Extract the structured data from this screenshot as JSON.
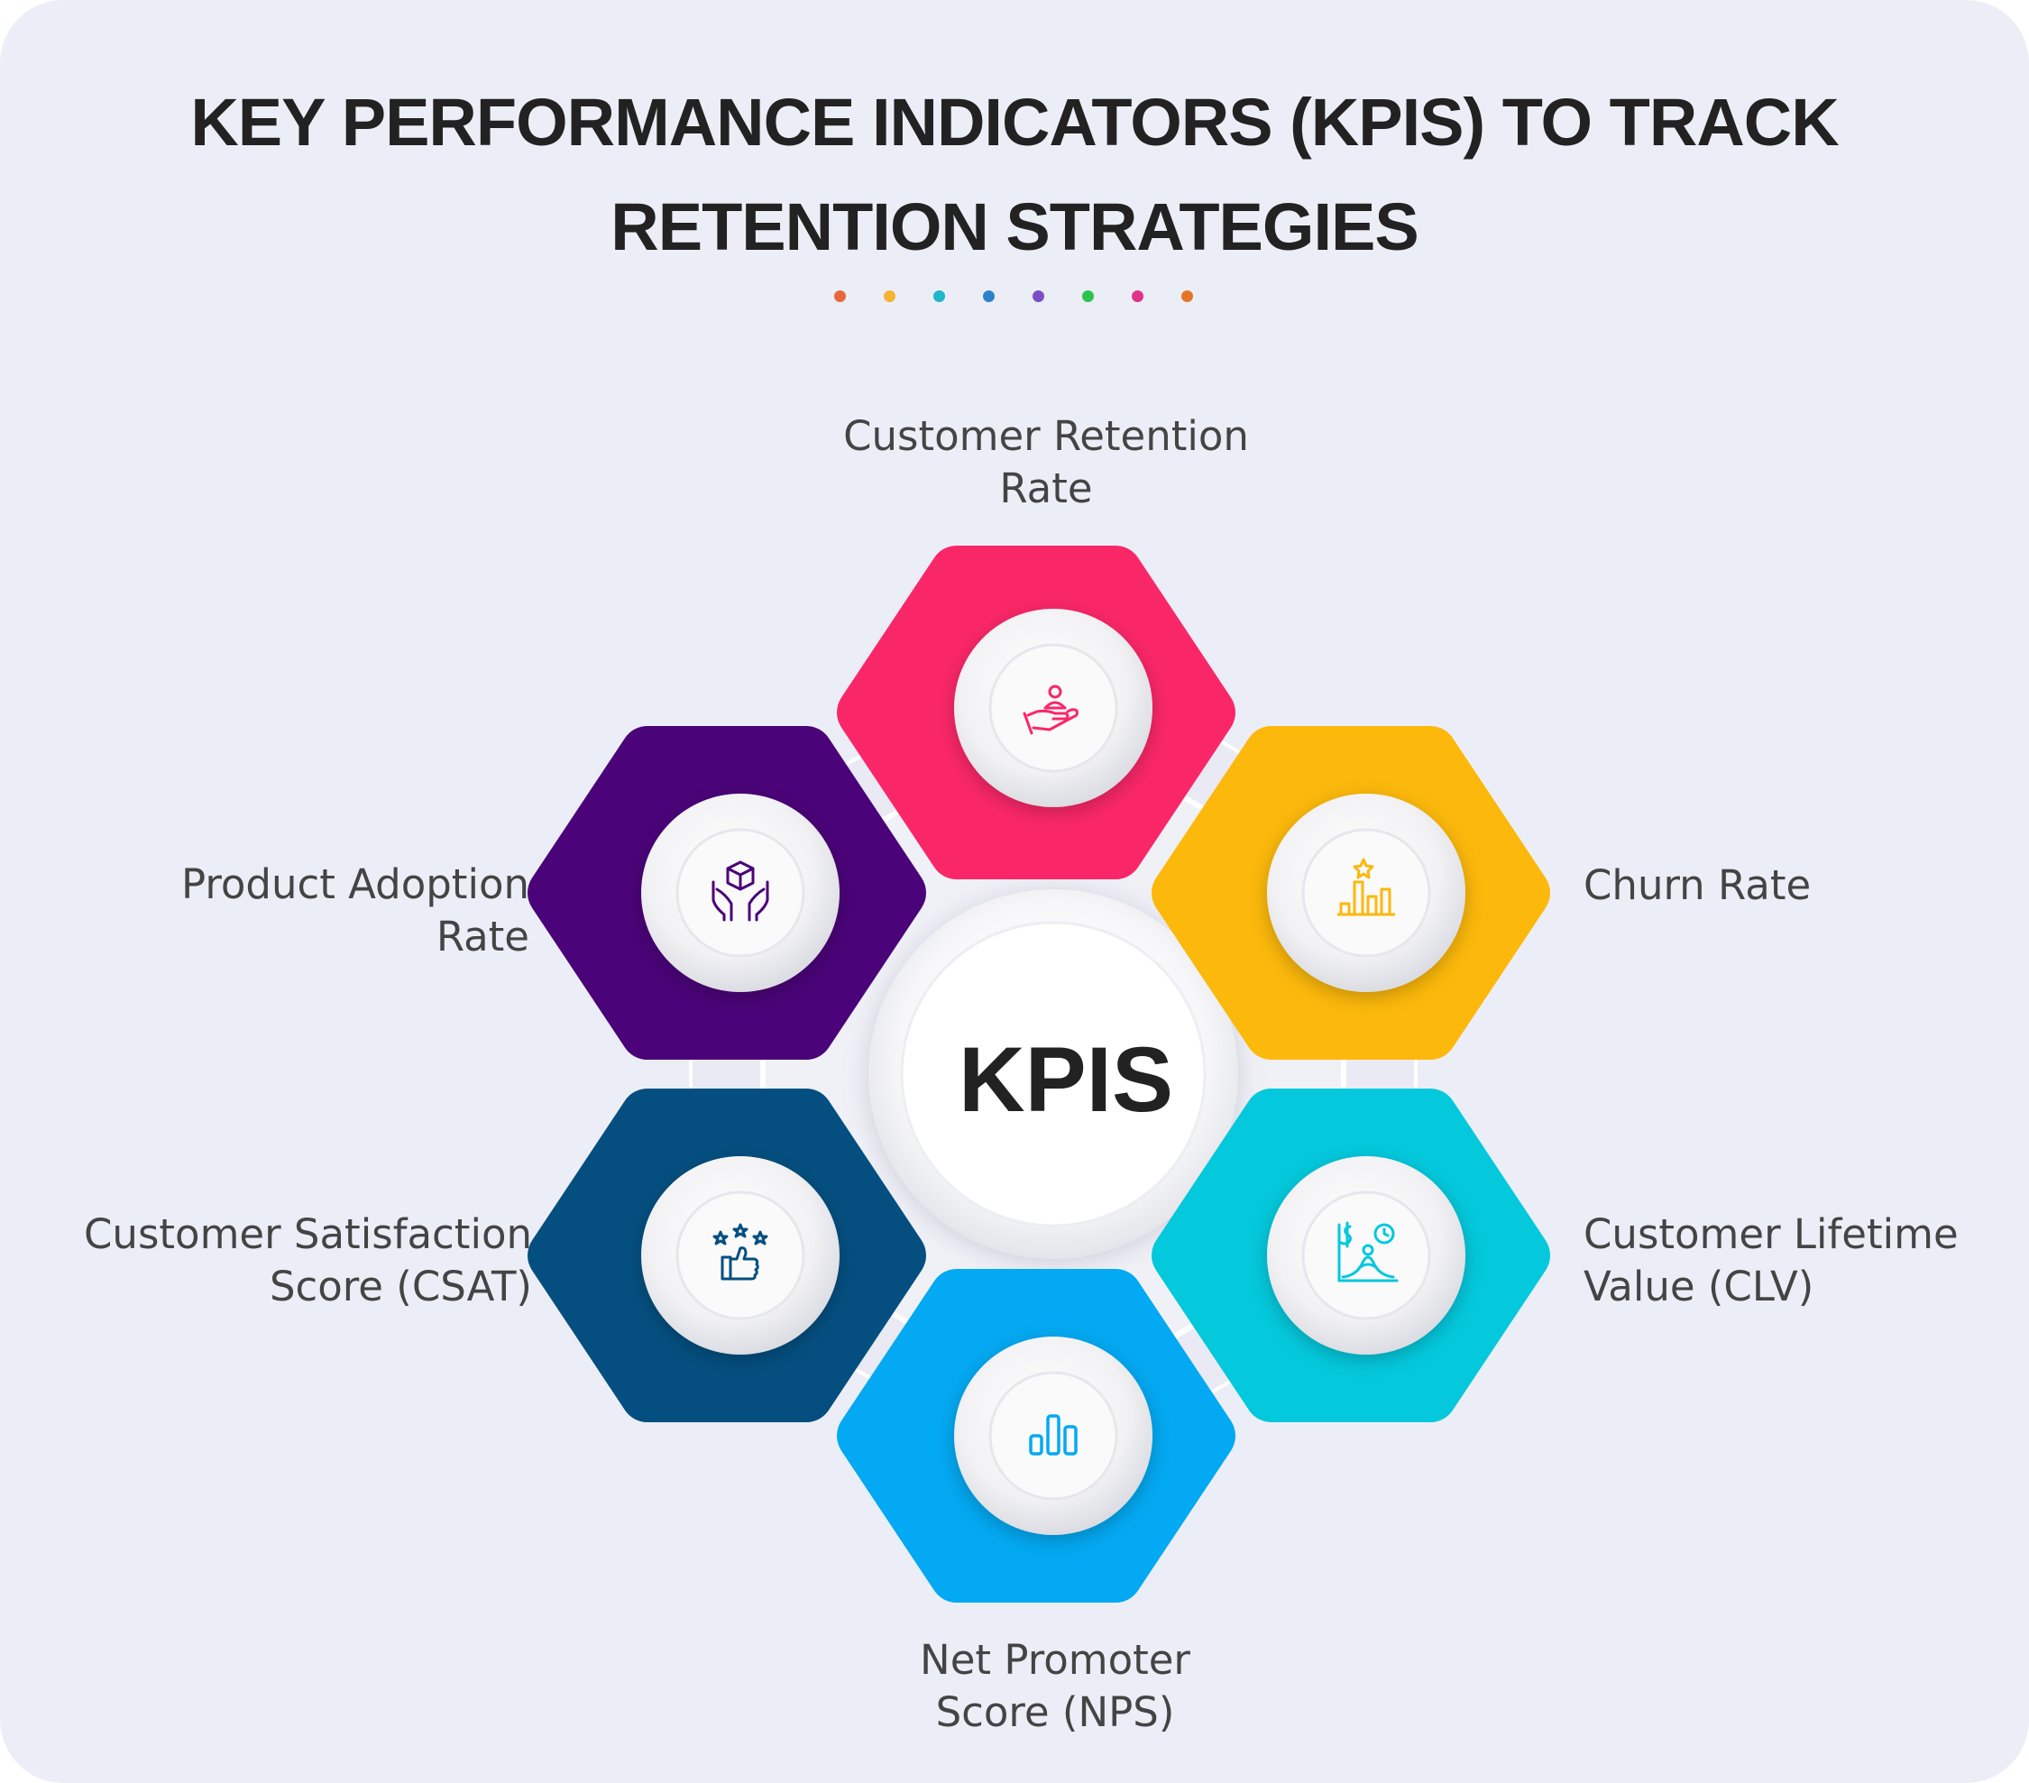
{
  "title": {
    "line1": "KEY PERFORMANCE INDICATORS (KPIS) TO TRACK",
    "line2": "RETENTION STRATEGIES"
  },
  "dots": [
    "#e8673a",
    "#f2b431",
    "#1fb7c9",
    "#2f80c8",
    "#7a4fc6",
    "#2ec24a",
    "#e0338a",
    "#e57525"
  ],
  "center": {
    "label": "KPIS"
  },
  "nodes": [
    {
      "id": "retention",
      "line1": "Customer Retention",
      "line2": "Rate",
      "color": "#fa2768",
      "icon": "hand-holding-person-icon"
    },
    {
      "id": "churn",
      "line1": "Churn Rate",
      "line2": "",
      "color": "#fcb80b",
      "icon": "bar-chart-star-icon"
    },
    {
      "id": "clv",
      "line1": "Customer Lifetime",
      "line2": "Value (CLV)",
      "color": "#04c8dc",
      "icon": "dollar-chart-clock-icon"
    },
    {
      "id": "nps",
      "line1": "Net Promoter",
      "line2": "Score (NPS)",
      "color": "#03a9f2",
      "icon": "bar-chart-icon"
    },
    {
      "id": "csat",
      "line1": "Customer Satisfaction",
      "line2": "Score (CSAT)",
      "color": "#044f80",
      "icon": "thumbs-up-stars-icon"
    },
    {
      "id": "adoption",
      "line1": "Product Adoption",
      "line2": "Rate",
      "color": "#4a0378",
      "icon": "hands-box-icon"
    }
  ]
}
